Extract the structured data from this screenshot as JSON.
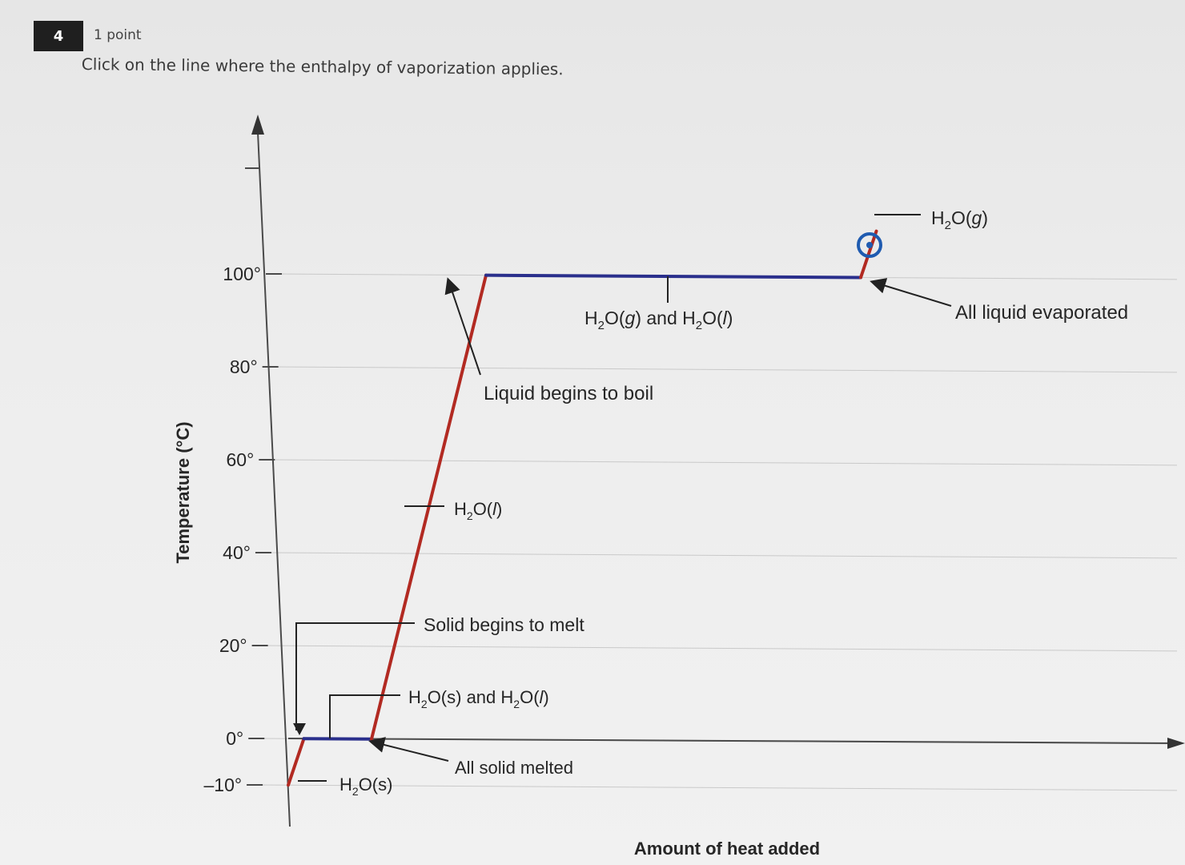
{
  "question": {
    "number": "4",
    "points": "1 point",
    "prompt": "Click on the line where the enthalpy of vaporization applies."
  },
  "chart_data": {
    "type": "line",
    "title": "",
    "xlabel": "Amount of heat added",
    "ylabel": "Temperature (°C)",
    "ylim": [
      -10,
      110
    ],
    "yticks": [
      {
        "value": 100,
        "label": "100°"
      },
      {
        "value": 80,
        "label": "80°"
      },
      {
        "value": 60,
        "label": "60°"
      },
      {
        "value": 40,
        "label": "40°"
      },
      {
        "value": 20,
        "label": "20°"
      },
      {
        "value": 0,
        "label": "0°"
      },
      {
        "value": -10,
        "label": "–10°"
      }
    ],
    "grid": true,
    "segments": [
      {
        "id": "solid-heating",
        "phase": "H2O(s)",
        "x": [
          0,
          0.3
        ],
        "y": [
          -10,
          0
        ],
        "color": "#b22a22"
      },
      {
        "id": "melting-plateau",
        "phase": "H2O(s) and H2O(l)",
        "x": [
          0.3,
          1.6
        ],
        "y": [
          0,
          0
        ],
        "color": "#2a2f8c"
      },
      {
        "id": "liquid-heating",
        "phase": "H2O(l)",
        "x": [
          1.6,
          3.8
        ],
        "y": [
          0,
          100
        ],
        "color": "#b22a22"
      },
      {
        "id": "vaporization-plateau",
        "phase": "H2O(g) and H2O(l)",
        "x": [
          3.8,
          11.0
        ],
        "y": [
          100,
          100
        ],
        "color": "#2a2f8c"
      },
      {
        "id": "gas-heating",
        "phase": "H2O(g)",
        "x": [
          11.0,
          11.3
        ],
        "y": [
          100,
          110
        ],
        "color": "#b22a22"
      }
    ],
    "annotations": {
      "gas": {
        "sub": "2",
        "pre": "H",
        "post": "O(",
        "ital": "g",
        "end": ")"
      },
      "all_liquid_evaporated": "All liquid evaporated",
      "gas_liquid": {
        "pre1": "H",
        "sub1": "2",
        "post1": "O(",
        "ital1": "g",
        "mid": ") and H",
        "sub2": "2",
        "post2": "O(",
        "ital2": "l",
        "end": ")"
      },
      "liquid_begins_to_boil": "Liquid begins to boil",
      "liquid": {
        "pre": "H",
        "sub": "2",
        "post": "O(",
        "ital": "l",
        "end": ")"
      },
      "solid_begins_to_melt": "Solid begins to melt",
      "solid_liquid": {
        "pre1": "H",
        "sub1": "2",
        "post1": "O(s) and H",
        "sub2": "2",
        "post2": "O(",
        "ital2": "l",
        "end": ")"
      },
      "all_solid_melted": "All solid melted",
      "solid": {
        "pre": "H",
        "sub": "2",
        "post": "O(s)"
      }
    }
  }
}
